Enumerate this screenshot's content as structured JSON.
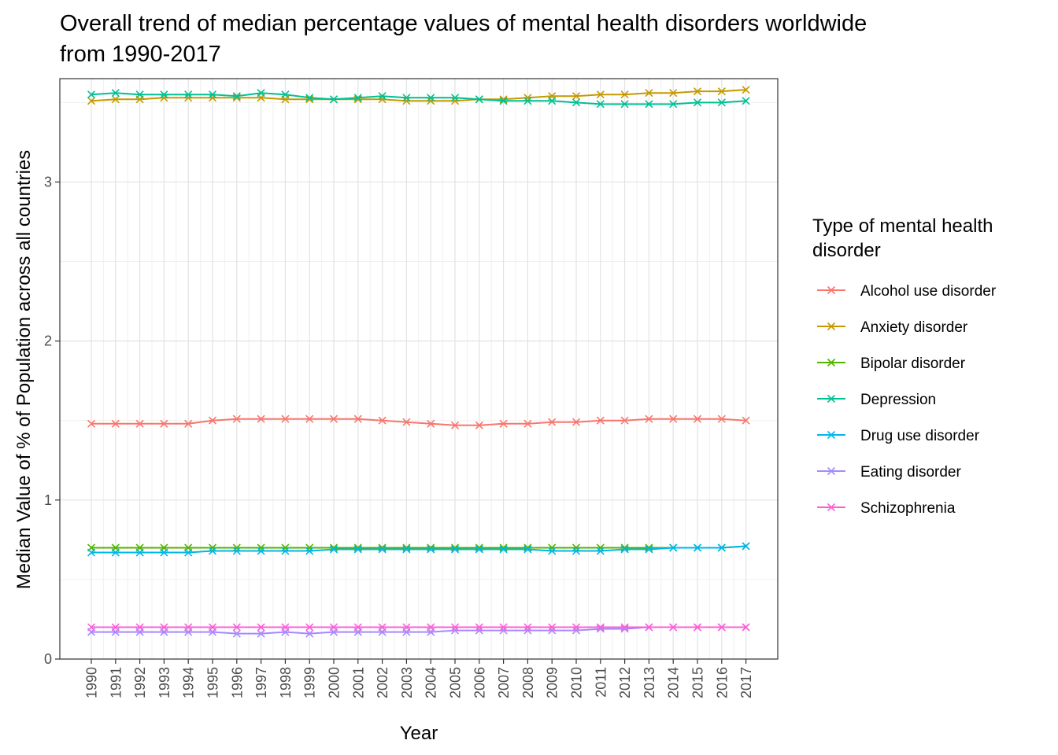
{
  "chart_data": {
    "type": "line",
    "title_lines": [
      "Overall trend of median percentage values of mental health disorders worldwide",
      "from 1990-2017"
    ],
    "xlabel": "Year",
    "ylabel": "Median Value of % of Population across all countries",
    "ylim": [
      0,
      3.65
    ],
    "yticks": [
      0,
      1,
      2,
      3
    ],
    "grid": true,
    "legend": {
      "position": "right",
      "title_lines": [
        "Type of mental health",
        "disorder"
      ]
    },
    "x": [
      "1990",
      "1991",
      "1992",
      "1993",
      "1994",
      "1995",
      "1996",
      "1997",
      "1998",
      "1999",
      "2000",
      "2001",
      "2002",
      "2003",
      "2004",
      "2005",
      "2006",
      "2007",
      "2008",
      "2009",
      "2010",
      "2011",
      "2012",
      "2013",
      "2014",
      "2015",
      "2016",
      "2017"
    ],
    "series": [
      {
        "name": "Alcohol use disorder",
        "color": "#F8766D",
        "values": [
          1.48,
          1.48,
          1.48,
          1.48,
          1.48,
          1.5,
          1.51,
          1.51,
          1.51,
          1.51,
          1.51,
          1.51,
          1.5,
          1.49,
          1.48,
          1.47,
          1.47,
          1.48,
          1.48,
          1.49,
          1.49,
          1.5,
          1.5,
          1.51,
          1.51,
          1.51,
          1.51,
          1.5
        ]
      },
      {
        "name": "Anxiety disorder",
        "color": "#C49A00",
        "values": [
          3.51,
          3.52,
          3.52,
          3.53,
          3.53,
          3.53,
          3.53,
          3.53,
          3.52,
          3.52,
          3.52,
          3.52,
          3.52,
          3.51,
          3.51,
          3.51,
          3.52,
          3.52,
          3.53,
          3.54,
          3.54,
          3.55,
          3.55,
          3.56,
          3.56,
          3.57,
          3.57,
          3.58
        ]
      },
      {
        "name": "Bipolar disorder",
        "color": "#53B400",
        "values": [
          0.7,
          0.7,
          0.7,
          0.7,
          0.7,
          0.7,
          0.7,
          0.7,
          0.7,
          0.7,
          0.7,
          0.7,
          0.7,
          0.7,
          0.7,
          0.7,
          0.7,
          0.7,
          0.7,
          0.7,
          0.7,
          0.7,
          0.7,
          0.7,
          0.7,
          0.7,
          0.7,
          0.71
        ]
      },
      {
        "name": "Depression",
        "color": "#00C094",
        "values": [
          3.55,
          3.56,
          3.55,
          3.55,
          3.55,
          3.55,
          3.54,
          3.56,
          3.55,
          3.53,
          3.52,
          3.53,
          3.54,
          3.53,
          3.53,
          3.53,
          3.52,
          3.51,
          3.51,
          3.51,
          3.5,
          3.49,
          3.49,
          3.49,
          3.49,
          3.5,
          3.5,
          3.51
        ]
      },
      {
        "name": "Drug use disorder",
        "color": "#00B6EB",
        "values": [
          0.67,
          0.67,
          0.67,
          0.67,
          0.67,
          0.68,
          0.68,
          0.68,
          0.68,
          0.68,
          0.69,
          0.69,
          0.69,
          0.69,
          0.69,
          0.69,
          0.69,
          0.69,
          0.69,
          0.68,
          0.68,
          0.68,
          0.69,
          0.69,
          0.7,
          0.7,
          0.7,
          0.71
        ]
      },
      {
        "name": "Eating disorder",
        "color": "#A58AFF",
        "values": [
          0.17,
          0.17,
          0.17,
          0.17,
          0.17,
          0.17,
          0.16,
          0.16,
          0.17,
          0.16,
          0.17,
          0.17,
          0.17,
          0.17,
          0.17,
          0.18,
          0.18,
          0.18,
          0.18,
          0.18,
          0.18,
          0.19,
          0.19,
          0.2,
          0.2,
          0.2,
          0.2,
          0.2
        ]
      },
      {
        "name": "Schizophrenia",
        "color": "#FB61D7",
        "values": [
          0.2,
          0.2,
          0.2,
          0.2,
          0.2,
          0.2,
          0.2,
          0.2,
          0.2,
          0.2,
          0.2,
          0.2,
          0.2,
          0.2,
          0.2,
          0.2,
          0.2,
          0.2,
          0.2,
          0.2,
          0.2,
          0.2,
          0.2,
          0.2,
          0.2,
          0.2,
          0.2,
          0.2
        ]
      }
    ]
  }
}
